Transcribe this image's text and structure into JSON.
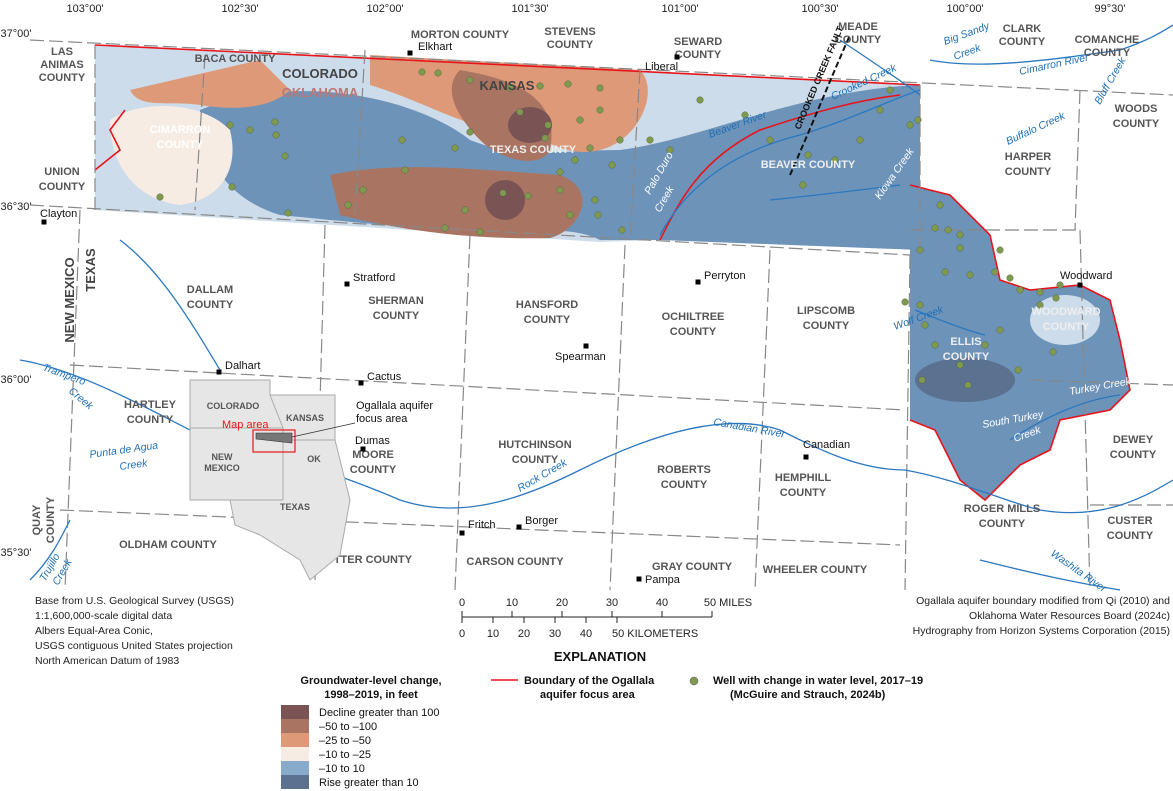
{
  "map": {
    "longitude_ticks": [
      "103°00'",
      "102°30'",
      "102°00'",
      "101°30'",
      "101°00'",
      "100°30'",
      "100°00'",
      "99°30'"
    ],
    "latitude_ticks": [
      "37°00'",
      "36°30'",
      "36°00'",
      "35°30'"
    ],
    "states": {
      "colorado": "COLORADO",
      "oklahoma": "OKLAHOMA",
      "kansas": "KANSAS",
      "new_mexico": "NEW MEXICO",
      "texas": "TEXAS"
    },
    "counties": [
      "LAS",
      "ANIMAS",
      "COUNTY",
      "BACA COUNTY",
      "MORTON COUNTY",
      "STEVENS",
      "COUNTY",
      "SEWARD",
      "COUNTY",
      "MEADE",
      "COUNTY",
      "CLARK",
      "COUNTY",
      "COMANCHE",
      "COUNTY",
      "WOODS",
      "COUNTY",
      "HARPER",
      "COUNTY",
      "UNION",
      "COUNTY",
      "CIMARRON",
      "COUNTY",
      "TEXAS COUNTY",
      "BEAVER COUNTY",
      "DALLAM",
      "COUNTY",
      "SHERMAN",
      "COUNTY",
      "HANSFORD",
      "COUNTY",
      "OCHILTREE",
      "COUNTY",
      "LIPSCOMB",
      "COUNTY",
      "ELLIS",
      "COUNTY",
      "WOODWARD",
      "COUNTY",
      "HARTLEY",
      "COUNTY",
      "MOORE",
      "COUNTY",
      "HUTCHINSON",
      "COUNTY",
      "ROBERTS",
      "COUNTY",
      "HEMPHILL",
      "COUNTY",
      "DEWEY",
      "COUNTY",
      "ROGER MILLS",
      "COUNTY",
      "CUSTER",
      "COUNTY",
      "OLDHAM COUNTY",
      "POTTER COUNTY",
      "CARSON COUNTY",
      "GRAY COUNTY",
      "WHEELER COUNTY",
      "QUAY",
      "COUNTY"
    ],
    "cities": [
      "Elkhart",
      "Liberal",
      "Clayton",
      "Stratford",
      "Perryton",
      "Spearman",
      "Dalhart",
      "Cactus",
      "Dumas",
      "Woodward",
      "Canadian",
      "Fritch",
      "Borger",
      "Pampa"
    ],
    "rivers": [
      "Beaver River",
      "Crooked Creek",
      "Big Sandy",
      "Creek",
      "Cimarron River",
      "Bluff Creek",
      "Buffalo Creek",
      "Kiowa Creek",
      "Palo Duro",
      "Creek",
      "Wolf Creek",
      "Turkey Creek",
      "South Turkey",
      "Creek",
      "Canadian River",
      "Rock Creek",
      "Punta de Agua",
      "Creek",
      "Trampero",
      "Creek",
      "Trujillo",
      "Creek",
      "Washita River"
    ],
    "fault": "CROOKED CREEK FAULT"
  },
  "inset": {
    "states": [
      "COLORADO",
      "KANSAS",
      "NEW",
      "MEXICO",
      "OK",
      "TEXAS"
    ],
    "map_area_label": "Map area",
    "callout": [
      "Ogallala aquifer",
      "focus area"
    ]
  },
  "credits": {
    "left": [
      "Base from U.S. Geological Survey (USGS)",
      "1:1,600,000-scale digital data",
      "Albers Equal-Area Conic,",
      "USGS contiguous United States projection",
      "North American Datum of 1983"
    ],
    "right": [
      "Ogallala aquifer boundary modified from Qi (2010) and",
      "Oklahoma Water Resources Board (2024c)",
      "Hydrography from Horizon Systems Corporation (2015)"
    ]
  },
  "scale_bar": {
    "miles": [
      "0",
      "10",
      "20",
      "30",
      "40",
      "50 MILES"
    ],
    "kilometers": [
      "0",
      "10",
      "20",
      "30",
      "40",
      "50 KILOMETERS"
    ]
  },
  "legend": {
    "title": "EXPLANATION",
    "gw_title": [
      "Groundwater-level change,",
      "1998–2019, in feet"
    ],
    "classes": [
      {
        "label": "Decline greater than 100",
        "color": "#7a5454"
      },
      {
        "label": "–50 to –100",
        "color": "#a97562"
      },
      {
        "label": "–25 to –50",
        "color": "#de9a78"
      },
      {
        "label": "–10 to –25",
        "color": "#f7ece3"
      },
      {
        "label": "–10 to 10",
        "color": "#89abcb"
      },
      {
        "label": "Rise greater than 10",
        "color": "#5b7190"
      }
    ],
    "boundary": {
      "label": [
        "Boundary of the Ogallala",
        "aquifer focus area"
      ],
      "color": "#e8141b"
    },
    "well": {
      "label": [
        "Well with change in water level, 2017–19",
        "(McGuire and Strauch, 2024b)"
      ],
      "color": "#7f9a4f"
    }
  },
  "colors": {
    "river": "#2a78c0",
    "boundary": "#e8141b",
    "map_blue": "#6e93b9",
    "light_blue": "#cddcea"
  }
}
